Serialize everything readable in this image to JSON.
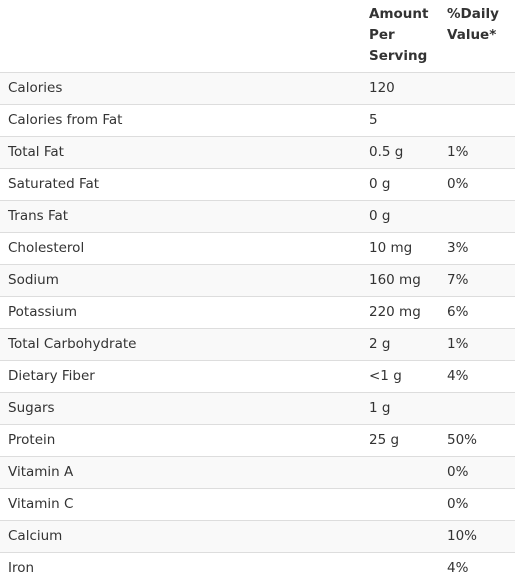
{
  "header": {
    "name": "",
    "amount": "Amount Per Serving",
    "daily_value": "%Daily Value*"
  },
  "rows": [
    {
      "name": "Calories",
      "amount": "120",
      "dv": ""
    },
    {
      "name": "Calories from Fat",
      "amount": "5",
      "dv": ""
    },
    {
      "name": "Total Fat",
      "amount": "0.5 g",
      "dv": "1%"
    },
    {
      "name": "Saturated Fat",
      "amount": "0 g",
      "dv": "0%"
    },
    {
      "name": "Trans Fat",
      "amount": "0 g",
      "dv": ""
    },
    {
      "name": "Cholesterol",
      "amount": "10 mg",
      "dv": "3%"
    },
    {
      "name": "Sodium",
      "amount": "160 mg",
      "dv": "7%"
    },
    {
      "name": "Potassium",
      "amount": "220 mg",
      "dv": "6%"
    },
    {
      "name": "Total Carbohydrate",
      "amount": "2 g",
      "dv": "1%"
    },
    {
      "name": "Dietary Fiber",
      "amount": "<1 g",
      "dv": "4%"
    },
    {
      "name": "Sugars",
      "amount": "1 g",
      "dv": ""
    },
    {
      "name": "Protein",
      "amount": "25 g",
      "dv": "50%"
    },
    {
      "name": "Vitamin A",
      "amount": "",
      "dv": "0%"
    },
    {
      "name": "Vitamin C",
      "amount": "",
      "dv": "0%"
    },
    {
      "name": "Calcium",
      "amount": "",
      "dv": "10%"
    },
    {
      "name": "Iron",
      "amount": "",
      "dv": "4%"
    }
  ]
}
